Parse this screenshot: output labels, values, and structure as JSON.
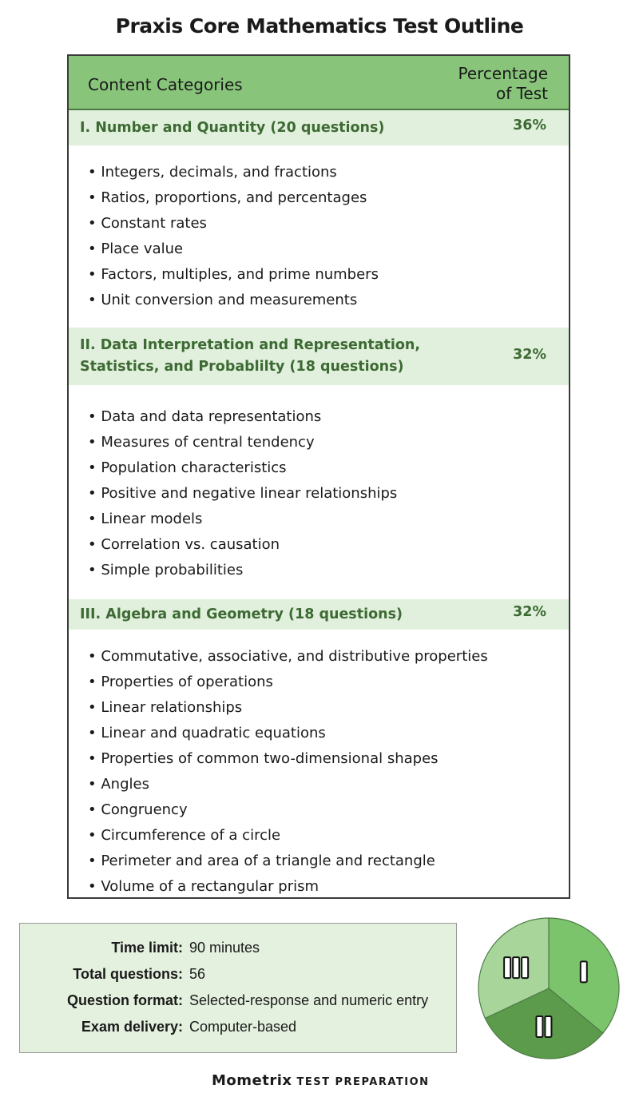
{
  "title": "Praxis Core Mathematics Test Outline",
  "table": {
    "header": {
      "categories": "Content Categories",
      "percentage": "Percentage\nof Test"
    },
    "sections": [
      {
        "name": "I. Number and Quantity (20 questions)",
        "percent": "36%",
        "items": [
          "Integers, decimals, and fractions",
          "Ratios, proportions, and percentages",
          "Constant rates",
          "Place value",
          "Factors, multiples, and prime numbers",
          "Unit conversion and measurements"
        ]
      },
      {
        "name": "II. Data Interpretation and Representation,\n     Statistics, and Probablilty (18 questions)",
        "percent": "32%",
        "items": [
          "Data and data representations",
          "Measures of central tendency",
          "Population characteristics",
          "Positive and negative linear relationships",
          "Linear models",
          "Correlation vs. causation",
          "Simple probabilities"
        ]
      },
      {
        "name": "III. Algebra and Geometry (18 questions)",
        "percent": "32%",
        "items": [
          "Commutative, associative, and distributive properties",
          "Properties of operations",
          "Linear relationships",
          "Linear and quadratic equations",
          "Properties of common two-dimensional shapes",
          "Angles",
          "Congruency",
          "Circumference of a circle",
          "Perimeter and area of a triangle and rectangle",
          "Volume of a rectangular prism"
        ]
      }
    ]
  },
  "info": [
    {
      "label": "Time limit:",
      "value": "90 minutes"
    },
    {
      "label": "Total questions:",
      "value": "56"
    },
    {
      "label": "Question format:",
      "value": "Selected-response and numeric entry"
    },
    {
      "label": "Exam delivery:",
      "value": "Computer-based"
    }
  ],
  "pie": {
    "slices": [
      {
        "label": "I",
        "value": 36,
        "color": "#7cc46c"
      },
      {
        "label": "II",
        "value": 32,
        "color": "#5c9a4c"
      },
      {
        "label": "III",
        "value": 32,
        "color": "#a7d59a"
      }
    ]
  },
  "logo": {
    "brand": "Mometrix",
    "sub": "TEST PREPARATION"
  }
}
